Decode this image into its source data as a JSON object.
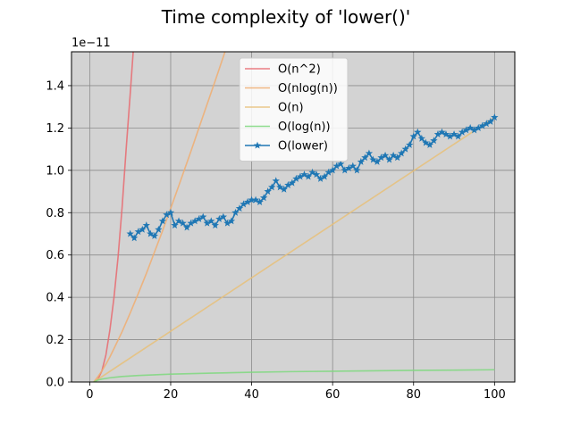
{
  "chart_data": {
    "type": "line",
    "title": "Time complexity of 'lower()'",
    "xlabel": "",
    "ylabel": "",
    "y_scale_label": "1e−11",
    "xlim": [
      -4.5,
      105
    ],
    "ylim": [
      0,
      1.56
    ],
    "x_ticks": [
      0,
      20,
      40,
      60,
      80,
      100
    ],
    "y_ticks": [
      0.0,
      0.2,
      0.4,
      0.6,
      0.8,
      1.0,
      1.2,
      1.4
    ],
    "x_tick_labels": [
      "0",
      "20",
      "40",
      "60",
      "80",
      "100"
    ],
    "y_tick_labels": [
      "0.0",
      "0.2",
      "0.4",
      "0.6",
      "0.8",
      "1.0",
      "1.2",
      "1.4"
    ],
    "grid": true,
    "legend_position": "upper-center",
    "background": "#d3d3d3",
    "series": [
      {
        "name": "O(n^2)",
        "color": "#e8696e",
        "marker": "none",
        "x": [
          1,
          2,
          3,
          4,
          5,
          6,
          7,
          8,
          9,
          10,
          11
        ],
        "y": [
          0.0,
          0.012,
          0.052,
          0.128,
          0.248,
          0.4,
          0.59,
          0.825,
          1.1,
          1.36,
          1.63
        ]
      },
      {
        "name": "O(nlog(n))",
        "color": "#f0ad70",
        "marker": "none",
        "x": [
          1,
          2,
          3,
          4,
          5,
          6,
          8,
          10,
          12,
          14,
          16,
          18,
          20,
          22,
          25,
          28,
          31,
          34,
          35
        ],
        "y": [
          0.0,
          0.025,
          0.052,
          0.084,
          0.119,
          0.158,
          0.238,
          0.326,
          0.418,
          0.513,
          0.614,
          0.715,
          0.82,
          0.927,
          1.09,
          1.257,
          1.423,
          1.593,
          1.65
        ]
      },
      {
        "name": "O(n)",
        "color": "#e8c078",
        "marker": "none",
        "x": [
          1,
          100
        ],
        "y": [
          0.0,
          1.25
        ]
      },
      {
        "name": "O(log(n))",
        "color": "#7ed87e",
        "marker": "none",
        "x": [
          1,
          2,
          3,
          5,
          8,
          12,
          20,
          30,
          40,
          50,
          60,
          70,
          80,
          90,
          100
        ],
        "y": [
          0.0,
          0.009,
          0.014,
          0.02,
          0.026,
          0.031,
          0.037,
          0.042,
          0.046,
          0.049,
          0.051,
          0.053,
          0.055,
          0.056,
          0.058
        ]
      },
      {
        "name": "O(lower)",
        "color": "#1f77b4",
        "marker": "star",
        "x": [
          10,
          11,
          12,
          13,
          14,
          15,
          16,
          17,
          18,
          19,
          20,
          21,
          22,
          23,
          24,
          25,
          26,
          27,
          28,
          29,
          30,
          31,
          32,
          33,
          34,
          35,
          36,
          37,
          38,
          39,
          40,
          41,
          42,
          43,
          44,
          45,
          46,
          47,
          48,
          49,
          50,
          51,
          52,
          53,
          54,
          55,
          56,
          57,
          58,
          59,
          60,
          61,
          62,
          63,
          64,
          65,
          66,
          67,
          68,
          69,
          70,
          71,
          72,
          73,
          74,
          75,
          76,
          77,
          78,
          79,
          80,
          81,
          82,
          83,
          84,
          85,
          86,
          87,
          88,
          89,
          90,
          91,
          92,
          93,
          94,
          95,
          96,
          97,
          98,
          99,
          100
        ],
        "y": [
          0.7,
          0.68,
          0.71,
          0.72,
          0.74,
          0.7,
          0.69,
          0.72,
          0.76,
          0.79,
          0.8,
          0.74,
          0.76,
          0.75,
          0.73,
          0.75,
          0.76,
          0.77,
          0.78,
          0.75,
          0.76,
          0.74,
          0.77,
          0.78,
          0.75,
          0.76,
          0.8,
          0.82,
          0.84,
          0.85,
          0.86,
          0.86,
          0.85,
          0.87,
          0.9,
          0.92,
          0.95,
          0.92,
          0.91,
          0.93,
          0.94,
          0.96,
          0.97,
          0.98,
          0.97,
          0.99,
          0.98,
          0.96,
          0.97,
          0.99,
          1.0,
          1.02,
          1.03,
          1.0,
          1.01,
          1.02,
          1.0,
          1.04,
          1.06,
          1.08,
          1.05,
          1.04,
          1.06,
          1.07,
          1.05,
          1.07,
          1.06,
          1.08,
          1.1,
          1.12,
          1.16,
          1.18,
          1.15,
          1.13,
          1.12,
          1.14,
          1.17,
          1.18,
          1.17,
          1.16,
          1.17,
          1.16,
          1.18,
          1.19,
          1.2,
          1.19,
          1.2,
          1.21,
          1.22,
          1.23,
          1.25
        ]
      }
    ]
  }
}
